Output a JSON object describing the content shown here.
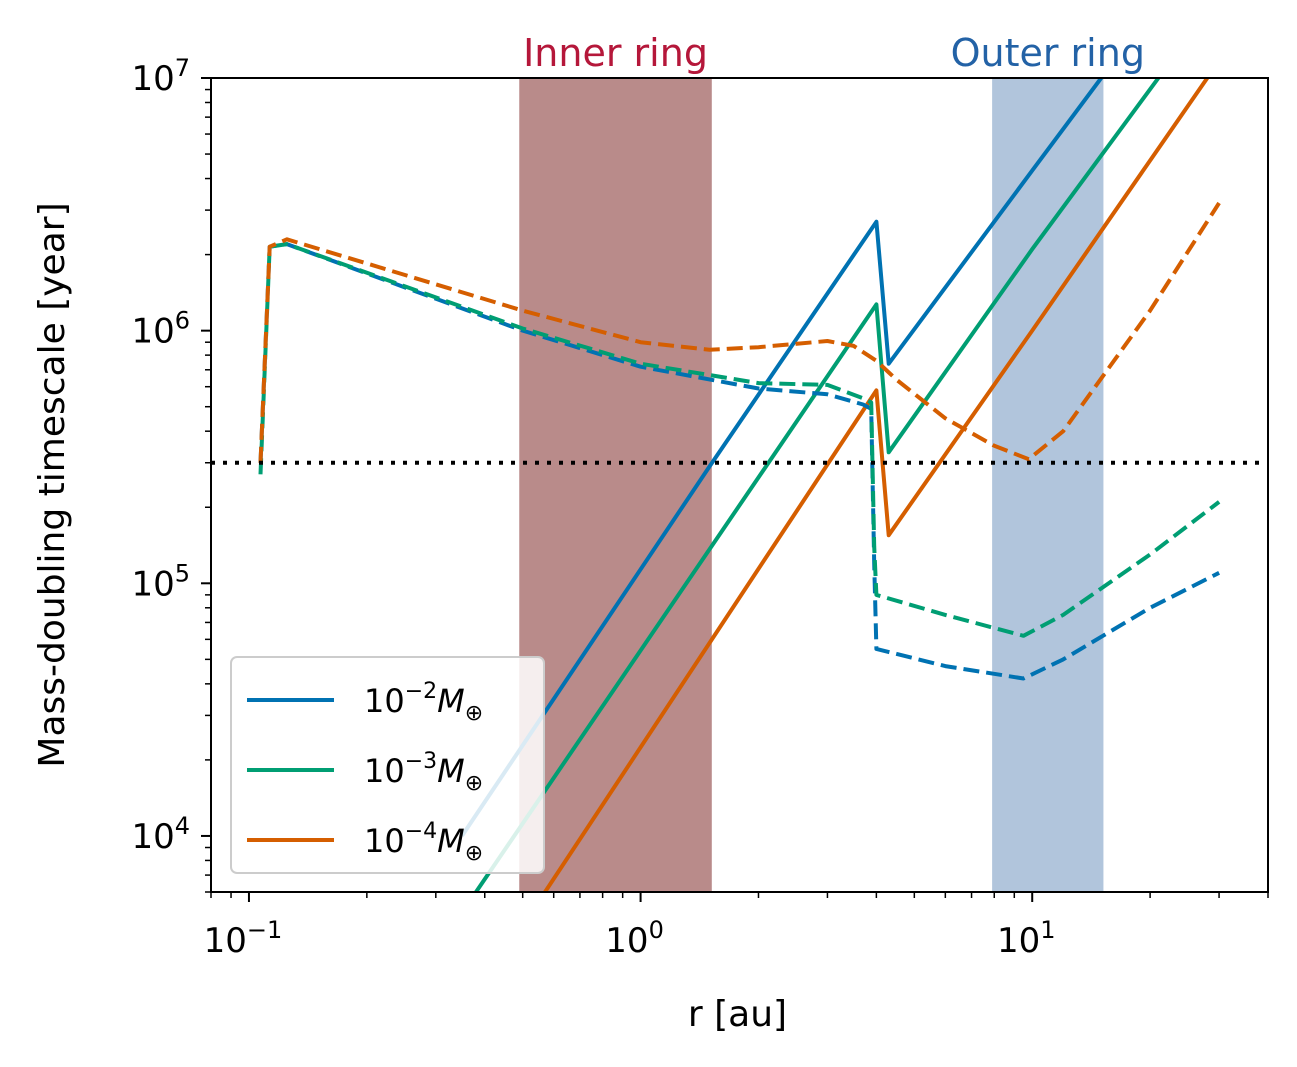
{
  "chart_data": {
    "type": "line",
    "xscale": "log",
    "yscale": "log",
    "xlabel": "r [au]",
    "ylabel": "Mass-doubling timescale [year]",
    "xlim": [
      0.08,
      40
    ],
    "ylim": [
      6000,
      10000000
    ],
    "x_ticks": [
      {
        "value": 0.1,
        "base": "10",
        "exp": "−1"
      },
      {
        "value": 1,
        "base": "10",
        "exp": "0"
      },
      {
        "value": 10,
        "base": "10",
        "exp": "1"
      }
    ],
    "y_ticks": [
      {
        "value": 10000,
        "base": "10",
        "exp": "4"
      },
      {
        "value": 100000,
        "base": "10",
        "exp": "5"
      },
      {
        "value": 1000000,
        "base": "10",
        "exp": "6"
      },
      {
        "value": 10000000,
        "base": "10",
        "exp": "7"
      }
    ],
    "regions": [
      {
        "name": "inner-ring",
        "label": "Inner ring",
        "x_range": [
          0.49,
          1.52
        ],
        "color": "#b98b8a",
        "label_color": "#b5173a"
      },
      {
        "name": "outer-ring",
        "label": "Outer ring",
        "x_range": [
          7.9,
          15.2
        ],
        "color": "#b1c5dc",
        "label_color": "#2362a6"
      }
    ],
    "reference_line": {
      "y": 300000,
      "style": "dotted",
      "color": "#000000"
    },
    "legend": {
      "position": "lower-left",
      "entries": [
        {
          "base": "10",
          "exp": "−2",
          "unit": "M",
          "sub": "⊕",
          "color": "#0072b2"
        },
        {
          "base": "10",
          "exp": "−3",
          "unit": "M",
          "sub": "⊕",
          "color": "#009e73"
        },
        {
          "base": "10",
          "exp": "−4",
          "unit": "M",
          "sub": "⊕",
          "color": "#d55e00"
        }
      ]
    },
    "series": [
      {
        "name": "1e-2 solid",
        "color": "#0072b2",
        "style": "solid",
        "points": [
          [
            0.35,
            10000
          ],
          [
            1.5,
            290000
          ],
          [
            4.0,
            2700000
          ],
          [
            4.3,
            740000
          ],
          [
            10,
            4300000
          ],
          [
            15,
            10000000
          ]
        ]
      },
      {
        "name": "1e-3 solid",
        "color": "#009e73",
        "style": "solid",
        "points": [
          [
            0.38,
            6000
          ],
          [
            4.0,
            1270000
          ],
          [
            4.3,
            330000
          ],
          [
            10,
            2100000
          ],
          [
            21,
            10000000
          ]
        ]
      },
      {
        "name": "1e-4 solid",
        "color": "#d55e00",
        "style": "solid",
        "points": [
          [
            0.57,
            6000
          ],
          [
            4.0,
            580000
          ],
          [
            4.3,
            155000
          ],
          [
            10,
            1000000
          ],
          [
            28,
            10000000
          ]
        ]
      },
      {
        "name": "1e-2 dashed",
        "color": "#0072b2",
        "style": "dashed",
        "points": [
          [
            0.107,
            300000
          ],
          [
            0.113,
            2150000
          ],
          [
            0.125,
            2200000
          ],
          [
            0.5,
            1000000
          ],
          [
            1.0,
            720000
          ],
          [
            2.0,
            590000
          ],
          [
            3.0,
            560000
          ],
          [
            3.7,
            510000
          ],
          [
            3.88,
            490000
          ],
          [
            3.95,
            120000
          ],
          [
            4.0,
            55000
          ],
          [
            6,
            47000
          ],
          [
            9.5,
            42000
          ],
          [
            12,
            50000
          ],
          [
            20,
            80000
          ],
          [
            30,
            110000
          ]
        ]
      },
      {
        "name": "1e-3 dashed",
        "color": "#009e73",
        "style": "dashed",
        "points": [
          [
            0.107,
            270000
          ],
          [
            0.113,
            2150000
          ],
          [
            0.125,
            2200000
          ],
          [
            0.5,
            1020000
          ],
          [
            1.0,
            740000
          ],
          [
            2.0,
            620000
          ],
          [
            3.0,
            610000
          ],
          [
            3.7,
            540000
          ],
          [
            3.88,
            520000
          ],
          [
            3.95,
            140000
          ],
          [
            4.0,
            90000
          ],
          [
            6,
            75000
          ],
          [
            9.5,
            62000
          ],
          [
            12,
            75000
          ],
          [
            20,
            130000
          ],
          [
            30,
            210000
          ]
        ]
      },
      {
        "name": "1e-4 dashed",
        "color": "#d55e00",
        "style": "dashed",
        "points": [
          [
            0.107,
            300000
          ],
          [
            0.113,
            2150000
          ],
          [
            0.125,
            2300000
          ],
          [
            0.5,
            1200000
          ],
          [
            1.0,
            900000
          ],
          [
            1.5,
            840000
          ],
          [
            2.0,
            860000
          ],
          [
            3.0,
            910000
          ],
          [
            3.5,
            870000
          ],
          [
            4.0,
            760000
          ],
          [
            4.5,
            640000
          ],
          [
            6,
            450000
          ],
          [
            8,
            350000
          ],
          [
            9.8,
            310000
          ],
          [
            12,
            400000
          ],
          [
            20,
            1200000
          ],
          [
            30,
            3200000
          ]
        ]
      }
    ]
  }
}
